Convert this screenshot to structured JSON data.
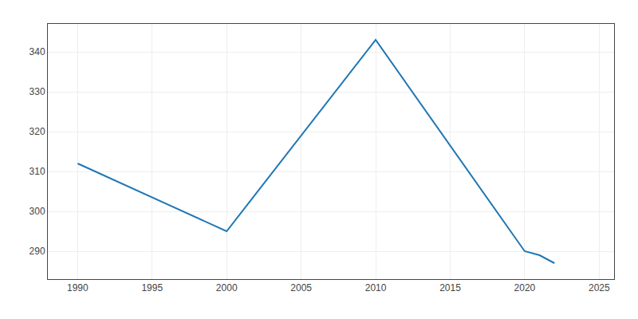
{
  "chart_data": {
    "type": "line",
    "x": [
      1990,
      2000,
      2010,
      2020,
      2021,
      2022
    ],
    "values": [
      312,
      295,
      343,
      290,
      289,
      287
    ],
    "xlim": [
      1988,
      2026
    ],
    "ylim": [
      283,
      347
    ],
    "xticks": [
      1990,
      1995,
      2000,
      2005,
      2010,
      2015,
      2020,
      2025
    ],
    "yticks": [
      290,
      300,
      310,
      320,
      330,
      340
    ],
    "grid": true
  }
}
